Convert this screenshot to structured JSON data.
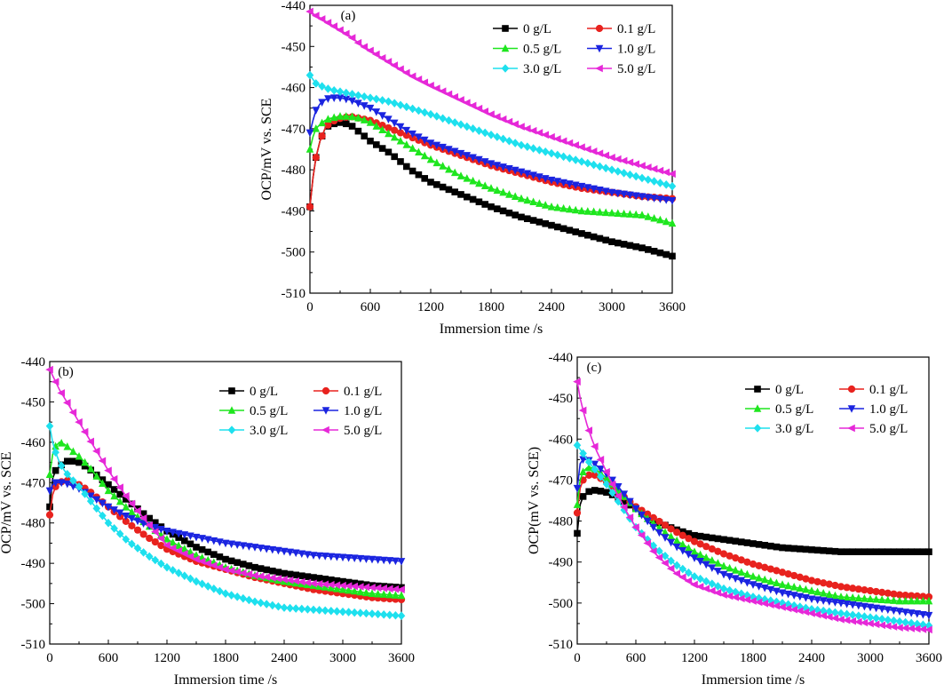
{
  "chart_data": [
    {
      "type": "line",
      "panel_label": "(a)",
      "xlabel": "Immersion time /s",
      "ylabel": "OCP/mV vs. SCE",
      "xlim": [
        0,
        3600
      ],
      "ylim": [
        -510,
        -440
      ],
      "xticks": [
        "0",
        "600",
        "1200",
        "1800",
        "2400",
        "3000",
        "3600"
      ],
      "yticks": [
        "-440",
        "-450",
        "-460",
        "-470",
        "-480",
        "-490",
        "-500",
        "-510"
      ],
      "legend_position": "top-right",
      "grid": false,
      "x": [
        0,
        30,
        60,
        100,
        150,
        200,
        300,
        400,
        500,
        600,
        800,
        1000,
        1200,
        1500,
        1800,
        2100,
        2400,
        2700,
        3000,
        3300,
        3600
      ],
      "series": [
        {
          "name": "0 g/L",
          "color": "#000000",
          "marker": "square",
          "values": [
            -489,
            -482,
            -477,
            -473,
            -470,
            -469,
            -468.5,
            -469,
            -471,
            -473,
            -476,
            -480,
            -483,
            -486,
            -489,
            -491.5,
            -493.5,
            -495.5,
            -497.5,
            -499,
            -501
          ]
        },
        {
          "name": "0.1 g/L",
          "color": "#e8221e",
          "marker": "circle",
          "values": [
            -489,
            -482,
            -477,
            -473,
            -470,
            -468.5,
            -467.5,
            -467,
            -467.5,
            -468,
            -470,
            -472,
            -474,
            -476.5,
            -479,
            -481,
            -483,
            -484.5,
            -485.5,
            -486.5,
            -487
          ]
        },
        {
          "name": "0.5 g/L",
          "color": "#1ee61e",
          "marker": "triangle-up",
          "values": [
            -475,
            -472,
            -470,
            -469,
            -468,
            -467.5,
            -467,
            -467,
            -467.5,
            -468.5,
            -471.5,
            -474.5,
            -477.5,
            -481.5,
            -484.5,
            -487,
            -489,
            -490,
            -490.5,
            -491,
            -493
          ]
        },
        {
          "name": "1.0 g/L",
          "color": "#1a24e0",
          "marker": "triangle-down",
          "values": [
            -471,
            -468,
            -465.5,
            -464,
            -463,
            -462.5,
            -462.5,
            -463,
            -464,
            -465,
            -468,
            -471,
            -473.5,
            -476,
            -478.5,
            -480.5,
            -482.5,
            -484,
            -485.5,
            -486.5,
            -487.5
          ]
        },
        {
          "name": "3.0 g/L",
          "color": "#1ee0ee",
          "marker": "diamond",
          "values": [
            -457,
            -458,
            -459,
            -459.5,
            -460,
            -460.5,
            -461,
            -461.5,
            -462,
            -462.5,
            -463.5,
            -465,
            -466.5,
            -469,
            -471.5,
            -474,
            -476,
            -478,
            -480,
            -482,
            -484
          ]
        },
        {
          "name": "5.0 g/L",
          "color": "#e628d8",
          "marker": "triangle-left",
          "values": [
            -441.5,
            -442,
            -442.5,
            -443,
            -443.8,
            -444.5,
            -446,
            -447.5,
            -449.5,
            -451,
            -454,
            -457,
            -459.5,
            -463,
            -466.5,
            -469.5,
            -472,
            -474.5,
            -477,
            -479,
            -481
          ]
        }
      ]
    },
    {
      "type": "line",
      "panel_label": "(b)",
      "xlabel": "Immersion time /s",
      "ylabel": "OCP/mV vs. SCE",
      "xlim": [
        0,
        3600
      ],
      "ylim": [
        -510,
        -440
      ],
      "xticks": [
        "0",
        "600",
        "1200",
        "1800",
        "2400",
        "3000",
        "3600"
      ],
      "yticks": [
        "-440",
        "-450",
        "-460",
        "-470",
        "-480",
        "-490",
        "-500",
        "-510"
      ],
      "legend_position": "top-right",
      "grid": false,
      "x": [
        0,
        30,
        60,
        100,
        150,
        200,
        300,
        400,
        500,
        600,
        800,
        1000,
        1200,
        1500,
        1800,
        2100,
        2400,
        2700,
        3000,
        3300,
        3600
      ],
      "series": [
        {
          "name": "0 g/L",
          "color": "#000000",
          "marker": "square",
          "values": [
            -476,
            -469,
            -467,
            -466,
            -465,
            -464.5,
            -465,
            -466.5,
            -468.5,
            -470.5,
            -474.5,
            -478.5,
            -482,
            -486,
            -489,
            -491,
            -492.5,
            -493.5,
            -494.5,
            -495.5,
            -496
          ]
        },
        {
          "name": "0.1 g/L",
          "color": "#e8221e",
          "marker": "circle",
          "values": [
            -478,
            -473,
            -471,
            -470,
            -469.5,
            -469.5,
            -470.5,
            -472,
            -474,
            -476,
            -480,
            -483.5,
            -486.5,
            -489.5,
            -491.5,
            -493.5,
            -495,
            -496.5,
            -497.5,
            -498.5,
            -499
          ]
        },
        {
          "name": "0.5 g/L",
          "color": "#1ee61e",
          "marker": "triangle-up",
          "values": [
            -468,
            -463,
            -461,
            -460,
            -460.5,
            -461.5,
            -463.5,
            -466,
            -469,
            -472,
            -476.5,
            -480.5,
            -484,
            -488,
            -491,
            -493,
            -494.5,
            -495.5,
            -496.5,
            -497.5,
            -498
          ]
        },
        {
          "name": "1.0 g/L",
          "color": "#1a24e0",
          "marker": "triangle-down",
          "values": [
            -472,
            -470.5,
            -470,
            -470,
            -470,
            -470.5,
            -471.5,
            -473,
            -474.5,
            -476,
            -478.5,
            -480.5,
            -482,
            -483.5,
            -485,
            -486,
            -487,
            -488,
            -488.5,
            -489,
            -489.5
          ]
        },
        {
          "name": "3.0 g/L",
          "color": "#1ee0ee",
          "marker": "diamond",
          "values": [
            -456,
            -460,
            -462.5,
            -465,
            -467,
            -468.5,
            -471,
            -474,
            -477,
            -480,
            -484.5,
            -488,
            -491,
            -494.5,
            -497.5,
            -499.5,
            -501,
            -501.5,
            -502,
            -502.5,
            -503
          ]
        },
        {
          "name": "5.0 g/L",
          "color": "#e628d8",
          "marker": "triangle-left",
          "values": [
            -442,
            -443.5,
            -445,
            -447,
            -449,
            -451,
            -455,
            -459,
            -463,
            -467,
            -474,
            -480,
            -485.5,
            -489,
            -491.5,
            -493,
            -494,
            -495,
            -495.5,
            -496,
            -496.5
          ]
        }
      ]
    },
    {
      "type": "line",
      "panel_label": "(c)",
      "xlabel": "Immersion time /s",
      "ylabel": "OCP(mV vs. SCE)",
      "xlim": [
        0,
        3600
      ],
      "ylim": [
        -510,
        -440
      ],
      "xticks": [
        "0",
        "600",
        "1200",
        "1800",
        "2400",
        "3000",
        "3600"
      ],
      "yticks": [
        "-440",
        "-450",
        "-460",
        "-470",
        "-480",
        "-490",
        "-500",
        "-510"
      ],
      "legend_position": "top-right",
      "grid": false,
      "x": [
        0,
        30,
        60,
        100,
        150,
        200,
        300,
        400,
        500,
        600,
        800,
        1000,
        1200,
        1500,
        1800,
        2100,
        2400,
        2700,
        3000,
        3300,
        3600
      ],
      "series": [
        {
          "name": "0 g/L",
          "color": "#000000",
          "marker": "square",
          "values": [
            -483,
            -476,
            -474,
            -473,
            -472.5,
            -472.5,
            -473,
            -474,
            -475.5,
            -477,
            -480,
            -482,
            -483.5,
            -484.5,
            -485.5,
            -486.5,
            -487,
            -487.5,
            -487.5,
            -487.5,
            -487.5
          ]
        },
        {
          "name": "0.1 g/L",
          "color": "#e8221e",
          "marker": "circle",
          "values": [
            -478,
            -472,
            -470,
            -469,
            -468.5,
            -469,
            -470.5,
            -472.5,
            -474.5,
            -476.5,
            -479.5,
            -482.5,
            -485,
            -488,
            -490.5,
            -492.5,
            -494.5,
            -496,
            -497,
            -498,
            -498.5
          ]
        },
        {
          "name": "0.5 g/L",
          "color": "#1ee61e",
          "marker": "triangle-up",
          "values": [
            -476,
            -470,
            -468,
            -467,
            -467,
            -467.5,
            -469.5,
            -472,
            -474.5,
            -477,
            -481,
            -484.5,
            -487.5,
            -491,
            -493.5,
            -495.5,
            -497,
            -498.5,
            -499,
            -499.5,
            -499.5
          ]
        },
        {
          "name": "1.0 g/L",
          "color": "#1a24e0",
          "marker": "triangle-down",
          "values": [
            -472,
            -466,
            -465,
            -465,
            -465.5,
            -466.5,
            -468.5,
            -471,
            -474,
            -477,
            -482,
            -486,
            -489,
            -493,
            -495.5,
            -497.5,
            -499,
            -500,
            -501,
            -502,
            -503
          ]
        },
        {
          "name": "3.0 g/L",
          "color": "#1ee0ee",
          "marker": "diamond",
          "values": [
            -461.5,
            -462.5,
            -463.5,
            -465,
            -466.5,
            -468,
            -471,
            -474.5,
            -478,
            -481.5,
            -486.5,
            -490.5,
            -493.5,
            -496.5,
            -498.5,
            -500,
            -501.5,
            -502.5,
            -503.5,
            -504.5,
            -505.5
          ]
        },
        {
          "name": "5.0 g/L",
          "color": "#e628d8",
          "marker": "triangle-left",
          "values": [
            -446,
            -450,
            -453,
            -456.5,
            -460,
            -463,
            -468,
            -473,
            -477.5,
            -481.5,
            -488,
            -492.5,
            -495.5,
            -498,
            -499.5,
            -501,
            -502.5,
            -504,
            -505,
            -506,
            -506.5
          ]
        }
      ]
    }
  ]
}
